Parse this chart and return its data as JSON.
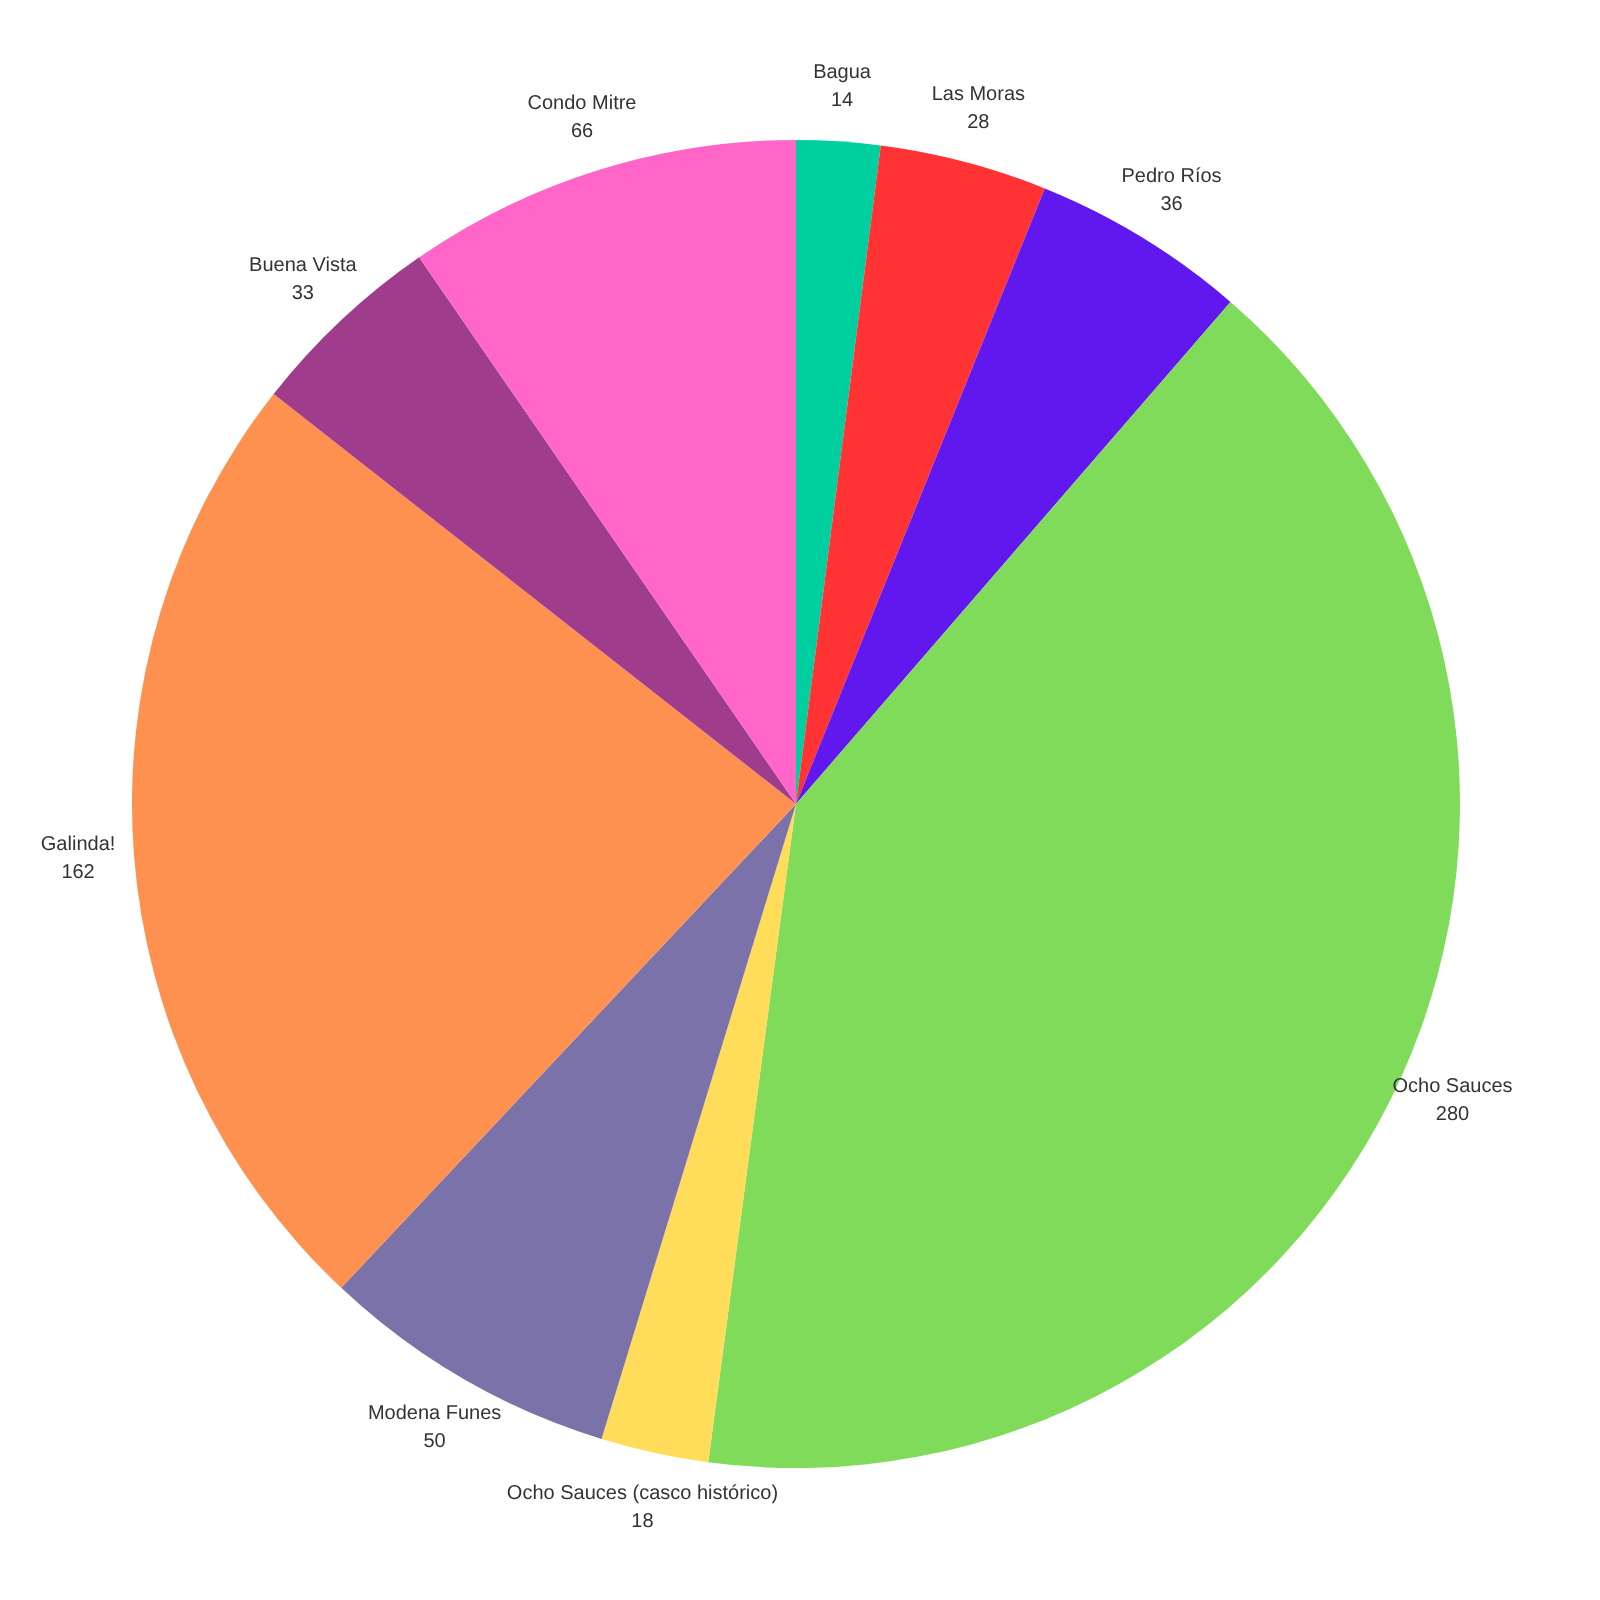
{
  "chart_data": {
    "type": "pie",
    "categories": [
      "Bagua",
      "Las Moras",
      "Pedro Ríos",
      "Ocho Sauces",
      "Ocho Sauces (casco histórico)",
      "Modena Funes",
      "Galinda!",
      "Buena Vista",
      "Condo Mitre"
    ],
    "values": [
      14,
      28,
      36,
      280,
      18,
      50,
      162,
      33,
      66
    ],
    "colors": [
      "#00d0a0",
      "#ff3333",
      "#6018ee",
      "#80db5a",
      "#ffdd5a",
      "#7a72a8",
      "#ff9150",
      "#a03c8c",
      "#ff66c8"
    ],
    "data_labels": true
  }
}
